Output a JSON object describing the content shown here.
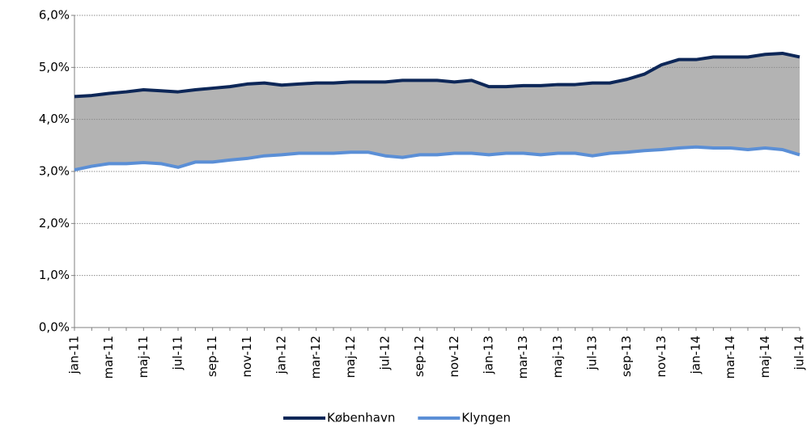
{
  "chart_data": {
    "type": "line",
    "categories": [
      "jan-11",
      null,
      "mar-11",
      null,
      "maj-11",
      null,
      "jul-11",
      null,
      "sep-11",
      null,
      "nov-11",
      null,
      "jan-12",
      null,
      "mar-12",
      null,
      "maj-12",
      null,
      "jul-12",
      null,
      "sep-12",
      null,
      "nov-12",
      null,
      "jan-13",
      null,
      "mar-13",
      null,
      "maj-13",
      null,
      "jul-13",
      null,
      "sep-13",
      null,
      "nov-13",
      null,
      "jan-14",
      null,
      "mar-14",
      null,
      "maj-14",
      null,
      "jul-14"
    ],
    "series": [
      {
        "name": "København",
        "color": "#0d2758",
        "values": [
          4.44,
          4.46,
          4.5,
          4.53,
          4.57,
          4.55,
          4.53,
          4.57,
          4.6,
          4.63,
          4.68,
          4.7,
          4.66,
          4.68,
          4.7,
          4.7,
          4.72,
          4.72,
          4.72,
          4.75,
          4.75,
          4.75,
          4.72,
          4.75,
          4.63,
          4.63,
          4.65,
          4.65,
          4.67,
          4.67,
          4.7,
          4.7,
          4.77,
          4.87,
          5.05,
          5.15,
          5.15,
          5.2,
          5.2,
          5.2,
          5.25,
          5.27,
          5.2
        ]
      },
      {
        "name": "Klyngen",
        "color": "#5b8fd6",
        "values": [
          3.03,
          3.1,
          3.15,
          3.15,
          3.17,
          3.15,
          3.08,
          3.18,
          3.18,
          3.22,
          3.25,
          3.3,
          3.32,
          3.35,
          3.35,
          3.35,
          3.37,
          3.37,
          3.3,
          3.27,
          3.32,
          3.32,
          3.35,
          3.35,
          3.32,
          3.35,
          3.35,
          3.32,
          3.35,
          3.35,
          3.3,
          3.35,
          3.37,
          3.4,
          3.42,
          3.45,
          3.47,
          3.45,
          3.45,
          3.42,
          3.45,
          3.42,
          3.32
        ]
      }
    ],
    "area_fill": "#b3b3b3",
    "ylim": [
      0,
      6
    ],
    "yticks": [
      {
        "value": 0,
        "label": "0,0%"
      },
      {
        "value": 1,
        "label": "1,0%"
      },
      {
        "value": 2,
        "label": "2,0%"
      },
      {
        "value": 3,
        "label": "3,0%"
      },
      {
        "value": 4,
        "label": "4,0%"
      },
      {
        "value": 5,
        "label": "5,0%"
      },
      {
        "value": 6,
        "label": "6,0%"
      }
    ],
    "grid": true,
    "legend": "bottom"
  }
}
